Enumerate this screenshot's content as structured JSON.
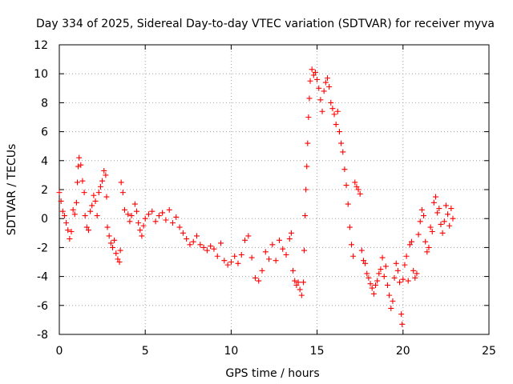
{
  "chart_data": {
    "type": "scatter",
    "title": "Day 334 of 2025, Sidereal Day-to-day VTEC variation (SDTVAR) for receiver myva",
    "xlabel": "GPS time / hours",
    "ylabel": "SDTVAR / TECUs",
    "xlim": [
      0,
      25
    ],
    "ylim": [
      -8,
      12
    ],
    "xticks": [
      0,
      5,
      10,
      15,
      20,
      25
    ],
    "yticks": [
      -8,
      -6,
      -4,
      -2,
      0,
      2,
      4,
      6,
      8,
      10,
      12
    ],
    "grid": true,
    "marker": "plus",
    "color": "#ff0000",
    "series": [
      {
        "name": "myva",
        "points": [
          [
            0.0,
            1.8
          ],
          [
            0.1,
            1.2
          ],
          [
            0.2,
            0.5
          ],
          [
            0.3,
            0.2
          ],
          [
            0.4,
            -0.3
          ],
          [
            0.5,
            -0.8
          ],
          [
            0.6,
            -1.4
          ],
          [
            0.7,
            -0.9
          ],
          [
            0.8,
            0.6
          ],
          [
            0.9,
            0.3
          ],
          [
            1.0,
            1.1
          ],
          [
            1.05,
            2.5
          ],
          [
            1.1,
            3.6
          ],
          [
            1.15,
            4.2
          ],
          [
            1.25,
            3.7
          ],
          [
            1.35,
            2.6
          ],
          [
            1.45,
            1.8
          ],
          [
            1.5,
            0.2
          ],
          [
            1.6,
            -0.6
          ],
          [
            1.7,
            -0.8
          ],
          [
            1.8,
            0.5
          ],
          [
            1.9,
            0.9
          ],
          [
            2.0,
            1.6
          ],
          [
            2.1,
            1.2
          ],
          [
            2.2,
            0.2
          ],
          [
            2.3,
            1.8
          ],
          [
            2.4,
            2.2
          ],
          [
            2.5,
            2.6
          ],
          [
            2.6,
            3.3
          ],
          [
            2.7,
            3.0
          ],
          [
            2.75,
            1.5
          ],
          [
            2.8,
            -0.6
          ],
          [
            2.9,
            -1.2
          ],
          [
            3.0,
            -1.7
          ],
          [
            3.1,
            -2.0
          ],
          [
            3.2,
            -1.5
          ],
          [
            3.3,
            -2.4
          ],
          [
            3.4,
            -2.8
          ],
          [
            3.5,
            -3.0
          ],
          [
            3.55,
            -2.2
          ],
          [
            3.6,
            2.5
          ],
          [
            3.7,
            1.8
          ],
          [
            3.8,
            0.6
          ],
          [
            4.0,
            0.3
          ],
          [
            4.1,
            -0.2
          ],
          [
            4.2,
            0.2
          ],
          [
            4.4,
            1.0
          ],
          [
            4.5,
            0.5
          ],
          [
            4.6,
            -0.3
          ],
          [
            4.7,
            -0.8
          ],
          [
            4.8,
            -1.2
          ],
          [
            4.9,
            -0.5
          ],
          [
            5.0,
            0.0
          ],
          [
            5.2,
            0.3
          ],
          [
            5.4,
            0.5
          ],
          [
            5.6,
            -0.2
          ],
          [
            5.8,
            0.2
          ],
          [
            6.0,
            0.4
          ],
          [
            6.2,
            -0.1
          ],
          [
            6.4,
            0.6
          ],
          [
            6.6,
            -0.3
          ],
          [
            6.8,
            0.1
          ],
          [
            7.0,
            -0.6
          ],
          [
            7.2,
            -1.0
          ],
          [
            7.4,
            -1.4
          ],
          [
            7.6,
            -1.8
          ],
          [
            7.8,
            -1.6
          ],
          [
            8.0,
            -1.2
          ],
          [
            8.2,
            -1.8
          ],
          [
            8.4,
            -2.0
          ],
          [
            8.6,
            -2.2
          ],
          [
            8.8,
            -1.9
          ],
          [
            9.0,
            -2.1
          ],
          [
            9.2,
            -2.6
          ],
          [
            9.4,
            -1.7
          ],
          [
            9.6,
            -2.9
          ],
          [
            9.8,
            -3.2
          ],
          [
            10.0,
            -3.0
          ],
          [
            10.2,
            -2.6
          ],
          [
            10.4,
            -3.1
          ],
          [
            10.6,
            -2.5
          ],
          [
            10.8,
            -1.5
          ],
          [
            11.0,
            -1.2
          ],
          [
            11.2,
            -2.7
          ],
          [
            11.4,
            -4.1
          ],
          [
            11.6,
            -4.3
          ],
          [
            11.8,
            -3.6
          ],
          [
            12.0,
            -2.3
          ],
          [
            12.2,
            -2.8
          ],
          [
            12.4,
            -1.8
          ],
          [
            12.6,
            -2.9
          ],
          [
            12.8,
            -1.5
          ],
          [
            13.0,
            -2.1
          ],
          [
            13.2,
            -2.5
          ],
          [
            13.4,
            -1.4
          ],
          [
            13.5,
            -1.0
          ],
          [
            13.6,
            -3.6
          ],
          [
            13.7,
            -4.3
          ],
          [
            13.8,
            -4.6
          ],
          [
            13.9,
            -4.4
          ],
          [
            14.0,
            -4.9
          ],
          [
            14.1,
            -5.3
          ],
          [
            14.2,
            -4.4
          ],
          [
            14.25,
            -2.2
          ],
          [
            14.3,
            0.2
          ],
          [
            14.35,
            2.0
          ],
          [
            14.4,
            3.6
          ],
          [
            14.45,
            5.2
          ],
          [
            14.5,
            7.0
          ],
          [
            14.55,
            8.3
          ],
          [
            14.6,
            9.5
          ],
          [
            14.7,
            10.3
          ],
          [
            14.8,
            9.9
          ],
          [
            14.9,
            10.1
          ],
          [
            15.0,
            9.6
          ],
          [
            15.1,
            9.0
          ],
          [
            15.2,
            8.2
          ],
          [
            15.3,
            7.4
          ],
          [
            15.4,
            8.8
          ],
          [
            15.5,
            9.4
          ],
          [
            15.6,
            9.7
          ],
          [
            15.7,
            9.1
          ],
          [
            15.8,
            8.0
          ],
          [
            15.9,
            7.6
          ],
          [
            16.0,
            7.2
          ],
          [
            16.1,
            6.5
          ],
          [
            16.2,
            7.4
          ],
          [
            16.3,
            6.0
          ],
          [
            16.4,
            5.2
          ],
          [
            16.5,
            4.6
          ],
          [
            16.6,
            3.4
          ],
          [
            16.7,
            2.3
          ],
          [
            16.8,
            1.0
          ],
          [
            16.9,
            -0.6
          ],
          [
            17.0,
            -1.8
          ],
          [
            17.1,
            -2.6
          ],
          [
            17.2,
            2.5
          ],
          [
            17.3,
            2.2
          ],
          [
            17.4,
            2.0
          ],
          [
            17.5,
            1.7
          ],
          [
            17.6,
            -2.2
          ],
          [
            17.7,
            -2.9
          ],
          [
            17.8,
            -3.1
          ],
          [
            17.9,
            -3.8
          ],
          [
            18.0,
            -4.1
          ],
          [
            18.1,
            -4.5
          ],
          [
            18.2,
            -4.8
          ],
          [
            18.3,
            -5.2
          ],
          [
            18.4,
            -4.6
          ],
          [
            18.5,
            -4.3
          ],
          [
            18.6,
            -3.8
          ],
          [
            18.7,
            -3.5
          ],
          [
            18.8,
            -2.7
          ],
          [
            18.9,
            -4.0
          ],
          [
            19.0,
            -3.3
          ],
          [
            19.1,
            -4.6
          ],
          [
            19.2,
            -5.3
          ],
          [
            19.3,
            -6.2
          ],
          [
            19.4,
            -5.7
          ],
          [
            19.5,
            -4.1
          ],
          [
            19.6,
            -3.1
          ],
          [
            19.7,
            -3.6
          ],
          [
            19.8,
            -4.4
          ],
          [
            19.9,
            -6.6
          ],
          [
            19.95,
            -7.3
          ],
          [
            20.0,
            -4.2
          ],
          [
            20.1,
            -3.2
          ],
          [
            20.2,
            -2.6
          ],
          [
            20.3,
            -4.3
          ],
          [
            20.4,
            -1.8
          ],
          [
            20.5,
            -1.6
          ],
          [
            20.6,
            -3.6
          ],
          [
            20.7,
            -4.1
          ],
          [
            20.8,
            -3.8
          ],
          [
            20.9,
            -1.1
          ],
          [
            21.0,
            -0.2
          ],
          [
            21.1,
            0.6
          ],
          [
            21.2,
            0.2
          ],
          [
            21.3,
            -1.6
          ],
          [
            21.4,
            -2.3
          ],
          [
            21.5,
            -2.0
          ],
          [
            21.6,
            -0.6
          ],
          [
            21.7,
            -0.9
          ],
          [
            21.8,
            1.1
          ],
          [
            21.9,
            1.5
          ],
          [
            22.0,
            0.4
          ],
          [
            22.1,
            0.7
          ],
          [
            22.2,
            -0.4
          ],
          [
            22.3,
            -1.0
          ],
          [
            22.4,
            -0.2
          ],
          [
            22.5,
            0.9
          ],
          [
            22.6,
            0.3
          ],
          [
            22.7,
            -0.5
          ],
          [
            22.8,
            0.7
          ],
          [
            22.9,
            0.0
          ]
        ]
      }
    ]
  }
}
